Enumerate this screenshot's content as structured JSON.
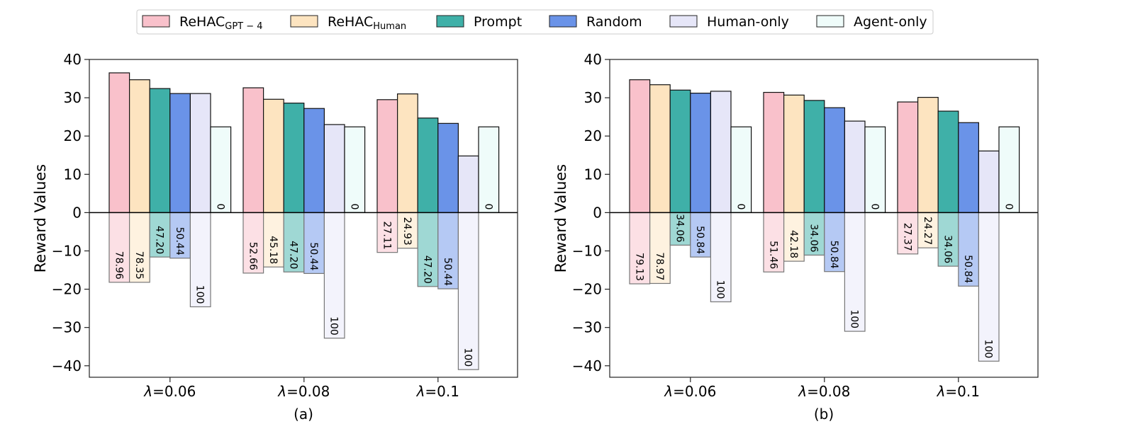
{
  "legend": [
    {
      "name": "ReHAC",
      "sub": "GPT − 4",
      "color": "#f9c1cb"
    },
    {
      "name": "ReHAC",
      "sub": "Human",
      "color": "#fde4c0"
    },
    {
      "name": "Prompt",
      "sub": "",
      "color": "#3fb0a8"
    },
    {
      "name": "Random",
      "sub": "",
      "color": "#6a93e8"
    },
    {
      "name": "Human-only",
      "sub": "",
      "color": "#e6e6f8"
    },
    {
      "name": "Agent-only",
      "sub": "",
      "color": "#effcfa"
    }
  ],
  "chart_data": [
    {
      "type": "bar",
      "caption": "(a)",
      "ylabel": "Reward Values",
      "ylim": [
        -43,
        40
      ],
      "yticks": [
        40,
        30,
        20,
        10,
        0,
        -10,
        -20,
        -30,
        -40
      ],
      "categories": [
        "λ=0.06",
        "λ=0.08",
        "λ=0.1"
      ],
      "series": [
        {
          "name": "ReHAC GPT − 4",
          "values": [
            36.5,
            32.6,
            29.5
          ],
          "neg_values": [
            -18.2,
            -15.8,
            -10.4
          ],
          "labels": [
            "78.96",
            "52.66",
            "27.11"
          ]
        },
        {
          "name": "ReHAC Human",
          "values": [
            34.7,
            29.6,
            31.0
          ],
          "neg_values": [
            -18.2,
            -14.2,
            -9.3
          ],
          "labels": [
            "78.35",
            "45.18",
            "24.93"
          ]
        },
        {
          "name": "Prompt",
          "values": [
            32.4,
            28.6,
            24.7
          ],
          "neg_values": [
            -11.6,
            -15.5,
            -19.3
          ],
          "labels": [
            "47.20",
            "47.20",
            "47.20"
          ]
        },
        {
          "name": "Random",
          "values": [
            31.1,
            27.2,
            23.3
          ],
          "neg_values": [
            -11.9,
            -15.9,
            -19.9
          ],
          "labels": [
            "50.44",
            "50.44",
            "50.44"
          ]
        },
        {
          "name": "Human-only",
          "values": [
            31.1,
            23.0,
            14.8
          ],
          "neg_values": [
            -24.6,
            -32.8,
            -41.0
          ],
          "labels": [
            "100",
            "100",
            "100"
          ]
        },
        {
          "name": "Agent-only",
          "values": [
            22.4,
            22.4,
            22.4
          ],
          "neg_values": [
            0,
            0,
            0
          ],
          "labels": [
            "0",
            "0",
            "0"
          ]
        }
      ]
    },
    {
      "type": "bar",
      "caption": "(b)",
      "ylabel": "Reward Values",
      "ylim": [
        -43,
        40
      ],
      "yticks": [
        40,
        30,
        20,
        10,
        0,
        -10,
        -20,
        -30,
        -40
      ],
      "categories": [
        "λ=0.06",
        "λ=0.08",
        "λ=0.1"
      ],
      "series": [
        {
          "name": "ReHAC GPT − 4",
          "values": [
            34.7,
            31.4,
            28.9
          ],
          "neg_values": [
            -18.6,
            -15.5,
            -10.8
          ],
          "labels": [
            "79.13",
            "51.46",
            "27.37"
          ]
        },
        {
          "name": "ReHAC Human",
          "values": [
            33.4,
            30.7,
            30.1
          ],
          "neg_values": [
            -18.5,
            -12.7,
            -9.2
          ],
          "labels": [
            "78.97",
            "42.18",
            "24.27"
          ]
        },
        {
          "name": "Prompt",
          "values": [
            32.0,
            29.3,
            26.5
          ],
          "neg_values": [
            -8.5,
            -11.1,
            -14.0
          ],
          "labels": [
            "34.06",
            "34.06",
            "34.06"
          ]
        },
        {
          "name": "Random",
          "values": [
            31.2,
            27.4,
            23.5
          ],
          "neg_values": [
            -11.6,
            -15.4,
            -19.2
          ],
          "labels": [
            "50.84",
            "50.84",
            "50.84"
          ]
        },
        {
          "name": "Human-only",
          "values": [
            31.7,
            23.9,
            16.1
          ],
          "neg_values": [
            -23.3,
            -31.0,
            -38.8
          ],
          "labels": [
            "100",
            "100",
            "100"
          ]
        },
        {
          "name": "Agent-only",
          "values": [
            22.4,
            22.4,
            22.4
          ],
          "neg_values": [
            0,
            0,
            0
          ],
          "labels": [
            "0",
            "0",
            "0"
          ]
        }
      ]
    }
  ]
}
